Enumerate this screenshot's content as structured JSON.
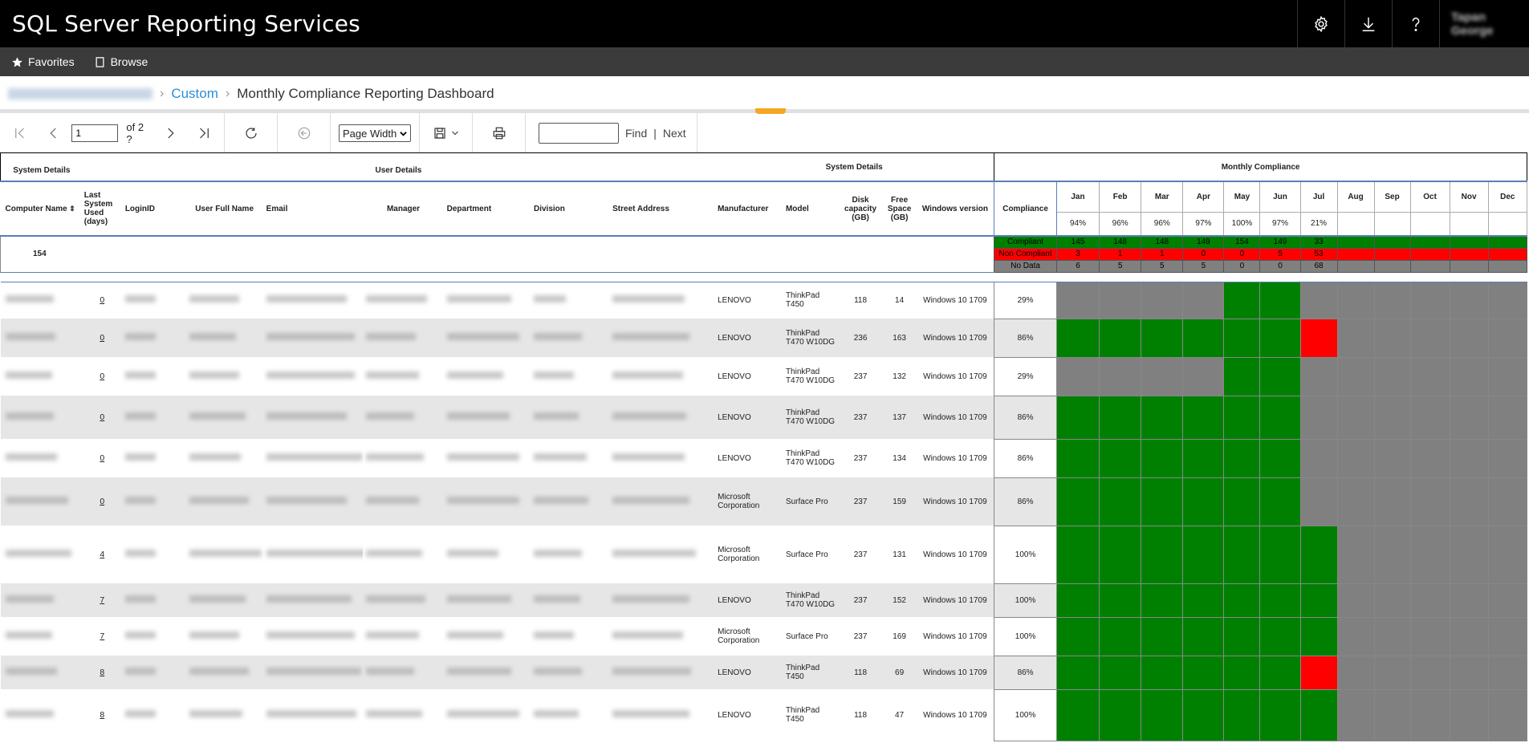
{
  "app": {
    "title": "SQL Server Reporting Services",
    "user_name": "Tapan George"
  },
  "nav": {
    "favorites": "Favorites",
    "browse": "Browse"
  },
  "breadcrumb": {
    "parent": "Custom",
    "current": "Monthly Compliance Reporting Dashboard",
    "sep": "›"
  },
  "toolbar": {
    "page_value": "1",
    "of_text": "of 2 ?",
    "zoom": "Page Width",
    "find_label": "Find",
    "sep": "|",
    "next_label": "Next"
  },
  "groups": {
    "system1": "System Details",
    "user": "User Details",
    "system2": "System Details",
    "monthly": "Monthly Compliance"
  },
  "headers": {
    "computer_name": "Computer Name",
    "last_used": "Last System Used (days)",
    "login_id": "LoginID",
    "user_full_name": "User Full Name",
    "email": "Email",
    "manager": "Manager",
    "department": "Department",
    "division": "Division",
    "street": "Street Address",
    "manufacturer": "Manufacturer",
    "model": "Model",
    "disk": "Disk capacity (GB)",
    "free": "Free Space (GB)",
    "windows": "Windows version",
    "compliance": "Compliance"
  },
  "months": [
    "Jan",
    "Feb",
    "Mar",
    "Apr",
    "May",
    "Jun",
    "Jul",
    "Aug",
    "Sep",
    "Oct",
    "Nov",
    "Dec"
  ],
  "month_pct": [
    "94%",
    "96%",
    "96%",
    "97%",
    "100%",
    "97%",
    "21%",
    "",
    "",
    "",
    "",
    ""
  ],
  "summary": {
    "total": "154",
    "compliant_label": "Compliant",
    "noncompliant_label": "Non Compliant",
    "nodata_label": "No Data",
    "compliant": [
      "145",
      "148",
      "148",
      "149",
      "154",
      "149",
      "33",
      "",
      "",
      "",
      "",
      ""
    ],
    "noncompliant": [
      "3",
      "1",
      "1",
      "0",
      "0",
      "5",
      "53",
      "",
      "",
      "",
      "",
      ""
    ],
    "nodata": [
      "6",
      "5",
      "5",
      "5",
      "0",
      "0",
      "68",
      "",
      "",
      "",
      "",
      ""
    ]
  },
  "colors": {
    "green": "#008000",
    "red": "#ff0000",
    "grey": "#808080"
  },
  "rows": [
    {
      "last_used": "0",
      "manufacturer": "LENOVO",
      "model": "ThinkPad T450",
      "disk": "118",
      "free": "14",
      "windows": "Windows 10 1709",
      "compliance": "29%",
      "status": [
        "g",
        "g",
        "g",
        "g",
        "c",
        "c",
        "g",
        "g",
        "g",
        "g",
        "g",
        "g"
      ]
    },
    {
      "last_used": "0",
      "manufacturer": "LENOVO",
      "model": "ThinkPad T470 W10DG",
      "disk": "236",
      "free": "163",
      "windows": "Windows 10 1709",
      "compliance": "86%",
      "status": [
        "c",
        "c",
        "c",
        "c",
        "c",
        "c",
        "n",
        "g",
        "g",
        "g",
        "g",
        "g"
      ]
    },
    {
      "last_used": "0",
      "manufacturer": "LENOVO",
      "model": "ThinkPad T470 W10DG",
      "disk": "237",
      "free": "132",
      "windows": "Windows 10 1709",
      "compliance": "29%",
      "status": [
        "g",
        "g",
        "g",
        "g",
        "c",
        "c",
        "g",
        "g",
        "g",
        "g",
        "g",
        "g"
      ]
    },
    {
      "last_used": "0",
      "manufacturer": "LENOVO",
      "model": "ThinkPad T470 W10DG",
      "disk": "237",
      "free": "137",
      "windows": "Windows 10 1709",
      "compliance": "86%",
      "status": [
        "c",
        "c",
        "c",
        "c",
        "c",
        "c",
        "g",
        "g",
        "g",
        "g",
        "g",
        "g"
      ]
    },
    {
      "last_used": "0",
      "manufacturer": "LENOVO",
      "model": "ThinkPad T470 W10DG",
      "disk": "237",
      "free": "134",
      "windows": "Windows 10 1709",
      "compliance": "86%",
      "status": [
        "c",
        "c",
        "c",
        "c",
        "c",
        "c",
        "g",
        "g",
        "g",
        "g",
        "g",
        "g"
      ]
    },
    {
      "last_used": "0",
      "manufacturer": "Microsoft Corporation",
      "model": "Surface Pro",
      "disk": "237",
      "free": "159",
      "windows": "Windows 10 1709",
      "compliance": "86%",
      "status": [
        "c",
        "c",
        "c",
        "c",
        "c",
        "c",
        "g",
        "g",
        "g",
        "g",
        "g",
        "g"
      ]
    },
    {
      "last_used": "4",
      "manufacturer": "Microsoft Corporation",
      "model": "Surface Pro",
      "disk": "237",
      "free": "131",
      "windows": "Windows 10 1709",
      "compliance": "100%",
      "status": [
        "c",
        "c",
        "c",
        "c",
        "c",
        "c",
        "c",
        "g",
        "g",
        "g",
        "g",
        "g"
      ]
    },
    {
      "last_used": "7",
      "manufacturer": "LENOVO",
      "model": "ThinkPad T470 W10DG",
      "disk": "237",
      "free": "152",
      "windows": "Windows 10 1709",
      "compliance": "100%",
      "status": [
        "c",
        "c",
        "c",
        "c",
        "c",
        "c",
        "c",
        "g",
        "g",
        "g",
        "g",
        "g"
      ]
    },
    {
      "last_used": "7",
      "manufacturer": "Microsoft Corporation",
      "model": "Surface Pro",
      "disk": "237",
      "free": "169",
      "windows": "Windows 10 1709",
      "compliance": "100%",
      "status": [
        "c",
        "c",
        "c",
        "c",
        "c",
        "c",
        "c",
        "g",
        "g",
        "g",
        "g",
        "g"
      ]
    },
    {
      "last_used": "8",
      "manufacturer": "LENOVO",
      "model": "ThinkPad T450",
      "disk": "118",
      "free": "69",
      "windows": "Windows 10 1709",
      "compliance": "86%",
      "status": [
        "c",
        "c",
        "c",
        "c",
        "c",
        "c",
        "n",
        "g",
        "g",
        "g",
        "g",
        "g"
      ]
    },
    {
      "last_used": "8",
      "manufacturer": "LENOVO",
      "model": "ThinkPad T450",
      "disk": "118",
      "free": "47",
      "windows": "Windows 10 1709",
      "compliance": "100%",
      "status": [
        "c",
        "c",
        "c",
        "c",
        "c",
        "c",
        "c",
        "g",
        "g",
        "g",
        "g",
        "g"
      ]
    }
  ]
}
